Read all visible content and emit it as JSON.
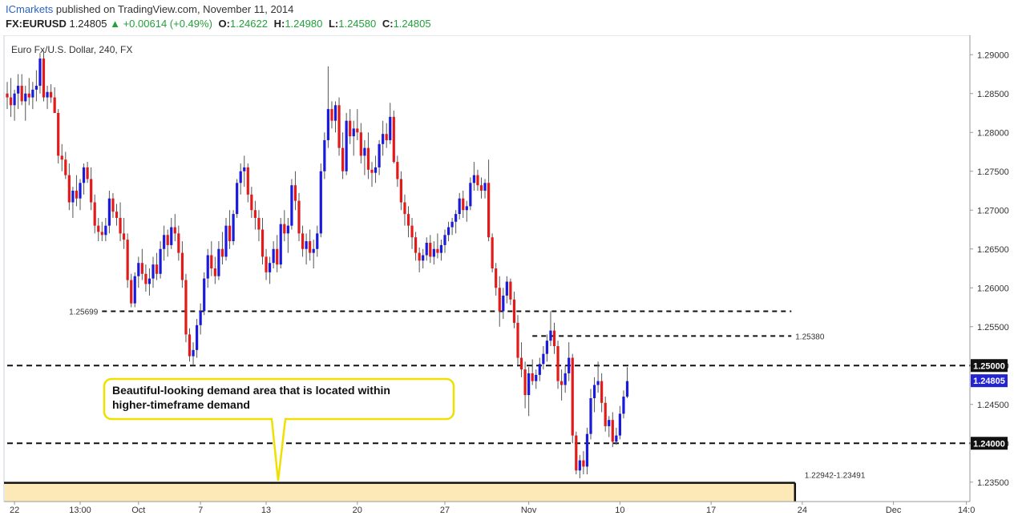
{
  "header": {
    "brand": "ICmarkets",
    "published": "published on TradingView.com, November 11, 2014",
    "symbol": "FX:EURUSD",
    "last": "1.24805",
    "change": "+0.00614 (+0.49%)",
    "o_label": "O:",
    "o_value": "1.24622",
    "h_label": "H:",
    "h_value": "1.24980",
    "l_label": "L:",
    "l_value": "1.24580",
    "c_label": "C:",
    "c_value": "1.24805"
  },
  "chart_data": {
    "type": "candlestick",
    "title": "Euro Fx/U.S. Dollar, 240, FX",
    "ylim": [
      1.2325,
      1.2925
    ],
    "y_ticks": [
      "1.29000",
      "1.28500",
      "1.28000",
      "1.27500",
      "1.27000",
      "1.26500",
      "1.26000",
      "1.25500",
      "1.25000",
      "1.24500",
      "1.24000",
      "1.23500"
    ],
    "x_ticks": [
      {
        "label": "22",
        "idx": 2
      },
      {
        "label": "13:00",
        "idx": 20
      },
      {
        "label": "Oct",
        "idx": 36
      },
      {
        "label": "7",
        "idx": 53
      },
      {
        "label": "13",
        "idx": 71
      },
      {
        "label": "20",
        "idx": 96
      },
      {
        "label": "27",
        "idx": 120
      },
      {
        "label": "Nov",
        "idx": 143
      },
      {
        "label": "10",
        "idx": 168
      },
      {
        "label": "17",
        "idx": 193
      },
      {
        "label": "24",
        "idx": 218
      },
      {
        "label": "Dec",
        "idx": 243
      },
      {
        "label": "14:0",
        "idx": 263
      }
    ],
    "key_levels": [
      {
        "price": 1.25699,
        "label": "1.25699",
        "from_idx": 26,
        "to_idx": 215,
        "thick": false
      },
      {
        "price": 1.2538,
        "label": "1.25380",
        "from_idx": 144,
        "to_idx": 215,
        "thick": false
      },
      {
        "price": 1.25,
        "label": "",
        "from_idx": 0,
        "to_idx": 268,
        "thick": true
      },
      {
        "price": 1.24,
        "label": "",
        "from_idx": 0,
        "to_idx": 268,
        "thick": true
      }
    ],
    "demand_zone": {
      "low": 1.22942,
      "high": 1.23491,
      "label": "1.22942-1.23491",
      "end_idx": 216
    },
    "price_tags": [
      {
        "price": 1.25,
        "label": "1.25000",
        "style": "dark"
      },
      {
        "price": 1.24805,
        "label": "1.24805",
        "style": "blue"
      },
      {
        "price": 1.24,
        "label": "1.24000",
        "style": "dark"
      }
    ],
    "annotation": {
      "text_line1": "Beautiful-looking demand area that is located within",
      "text_line2": "higher-timeframe demand"
    },
    "colors": {
      "up": "#1a1adc",
      "down": "#e21a1a",
      "wick": "#555555",
      "zone_fill": "#fde9b8",
      "callout": "#f0e000"
    },
    "ohlc": [
      [
        1.285,
        1.2865,
        1.283,
        1.2845
      ],
      [
        1.2845,
        1.287,
        1.282,
        1.2835
      ],
      [
        1.2835,
        1.2855,
        1.2815,
        1.285
      ],
      [
        1.285,
        1.2875,
        1.283,
        1.286
      ],
      [
        1.286,
        1.2875,
        1.2835,
        1.284
      ],
      [
        1.284,
        1.286,
        1.2815,
        1.285
      ],
      [
        1.285,
        1.287,
        1.2835,
        1.2845
      ],
      [
        1.2845,
        1.2865,
        1.283,
        1.2855
      ],
      [
        1.2855,
        1.288,
        1.284,
        1.286
      ],
      [
        1.286,
        1.2902,
        1.285,
        1.2895
      ],
      [
        1.2895,
        1.2905,
        1.284,
        1.2845
      ],
      [
        1.2845,
        1.286,
        1.283,
        1.2852
      ],
      [
        1.2852,
        1.2862,
        1.2838,
        1.2845
      ],
      [
        1.2845,
        1.2858,
        1.2825,
        1.2825
      ],
      [
        1.2825,
        1.283,
        1.276,
        1.277
      ],
      [
        1.277,
        1.2785,
        1.275,
        1.2765
      ],
      [
        1.2765,
        1.2775,
        1.274,
        1.2745
      ],
      [
        1.2745,
        1.276,
        1.27,
        1.271
      ],
      [
        1.271,
        1.273,
        1.269,
        1.2725
      ],
      [
        1.2725,
        1.2745,
        1.2705,
        1.2715
      ],
      [
        1.2715,
        1.274,
        1.27,
        1.2735
      ],
      [
        1.2735,
        1.276,
        1.272,
        1.2755
      ],
      [
        1.2755,
        1.2762,
        1.2735,
        1.274
      ],
      [
        1.274,
        1.2755,
        1.27,
        1.271
      ],
      [
        1.271,
        1.272,
        1.267,
        1.268
      ],
      [
        1.268,
        1.269,
        1.266,
        1.2672
      ],
      [
        1.2672,
        1.2685,
        1.266,
        1.2668
      ],
      [
        1.2668,
        1.269,
        1.266,
        1.268
      ],
      [
        1.268,
        1.2725,
        1.267,
        1.2715
      ],
      [
        1.2715,
        1.2722,
        1.269,
        1.2698
      ],
      [
        1.2698,
        1.2708,
        1.268,
        1.269
      ],
      [
        1.269,
        1.271,
        1.266,
        1.267
      ],
      [
        1.267,
        1.269,
        1.265,
        1.2662
      ],
      [
        1.2662,
        1.267,
        1.26,
        1.261
      ],
      [
        1.261,
        1.2618,
        1.2575,
        1.258
      ],
      [
        1.258,
        1.262,
        1.2575,
        1.2615
      ],
      [
        1.2615,
        1.264,
        1.26,
        1.2632
      ],
      [
        1.2632,
        1.265,
        1.261,
        1.2618
      ],
      [
        1.2618,
        1.263,
        1.2595,
        1.2605
      ],
      [
        1.2605,
        1.2625,
        1.259,
        1.2612
      ],
      [
        1.2612,
        1.264,
        1.26,
        1.263
      ],
      [
        1.263,
        1.2645,
        1.261,
        1.2618
      ],
      [
        1.2618,
        1.266,
        1.2612,
        1.265
      ],
      [
        1.265,
        1.268,
        1.2635,
        1.2668
      ],
      [
        1.2668,
        1.2675,
        1.264,
        1.2655
      ],
      [
        1.2655,
        1.269,
        1.265,
        1.2678
      ],
      [
        1.2678,
        1.2695,
        1.266,
        1.267
      ],
      [
        1.267,
        1.268,
        1.2635,
        1.2645
      ],
      [
        1.2645,
        1.266,
        1.26,
        1.261
      ],
      [
        1.261,
        1.2618,
        1.253,
        1.254
      ],
      [
        1.254,
        1.2548,
        1.2505,
        1.2512
      ],
      [
        1.2512,
        1.253,
        1.25,
        1.252
      ],
      [
        1.252,
        1.256,
        1.251,
        1.2552
      ],
      [
        1.2552,
        1.258,
        1.254,
        1.257
      ],
      [
        1.257,
        1.262,
        1.2565,
        1.2612
      ],
      [
        1.2612,
        1.265,
        1.26,
        1.2642
      ],
      [
        1.2642,
        1.266,
        1.2615,
        1.2625
      ],
      [
        1.2625,
        1.264,
        1.2605,
        1.2615
      ],
      [
        1.2615,
        1.266,
        1.261,
        1.265
      ],
      [
        1.265,
        1.2672,
        1.263,
        1.264
      ],
      [
        1.264,
        1.269,
        1.2635,
        1.268
      ],
      [
        1.268,
        1.27,
        1.265,
        1.266
      ],
      [
        1.266,
        1.27,
        1.2655,
        1.2695
      ],
      [
        1.2695,
        1.274,
        1.269,
        1.2735
      ],
      [
        1.2735,
        1.276,
        1.272,
        1.275
      ],
      [
        1.275,
        1.277,
        1.273,
        1.2755
      ],
      [
        1.2755,
        1.276,
        1.271,
        1.272
      ],
      [
        1.272,
        1.273,
        1.269,
        1.27
      ],
      [
        1.27,
        1.2712,
        1.2675,
        1.269
      ],
      [
        1.269,
        1.27,
        1.266,
        1.2675
      ],
      [
        1.2675,
        1.269,
        1.263,
        1.264
      ],
      [
        1.264,
        1.265,
        1.261,
        1.262
      ],
      [
        1.262,
        1.264,
        1.2605,
        1.2632
      ],
      [
        1.2632,
        1.266,
        1.2625,
        1.265
      ],
      [
        1.265,
        1.2668,
        1.262,
        1.263
      ],
      [
        1.263,
        1.269,
        1.2625,
        1.2682
      ],
      [
        1.2682,
        1.27,
        1.266,
        1.267
      ],
      [
        1.267,
        1.269,
        1.2645,
        1.268
      ],
      [
        1.268,
        1.274,
        1.2675,
        1.2732
      ],
      [
        1.2732,
        1.275,
        1.27,
        1.2712
      ],
      [
        1.2712,
        1.2722,
        1.266,
        1.267
      ],
      [
        1.267,
        1.268,
        1.264,
        1.265
      ],
      [
        1.265,
        1.267,
        1.263,
        1.266
      ],
      [
        1.266,
        1.2675,
        1.2635,
        1.2645
      ],
      [
        1.2645,
        1.2662,
        1.2625,
        1.265
      ],
      [
        1.265,
        1.268,
        1.264,
        1.267
      ],
      [
        1.267,
        1.276,
        1.2665,
        1.275
      ],
      [
        1.275,
        1.28,
        1.274,
        1.279
      ],
      [
        1.279,
        1.2885,
        1.278,
        1.283
      ],
      [
        1.283,
        1.284,
        1.2805,
        1.2815
      ],
      [
        1.2815,
        1.284,
        1.28,
        1.2835
      ],
      [
        1.2835,
        1.2845,
        1.277,
        1.278
      ],
      [
        1.278,
        1.28,
        1.274,
        1.275
      ],
      [
        1.275,
        1.2825,
        1.2745,
        1.2815
      ],
      [
        1.2815,
        1.283,
        1.2785,
        1.2795
      ],
      [
        1.2795,
        1.2815,
        1.277,
        1.2805
      ],
      [
        1.2805,
        1.283,
        1.279,
        1.28
      ],
      [
        1.28,
        1.2812,
        1.276,
        1.277
      ],
      [
        1.277,
        1.279,
        1.2745,
        1.278
      ],
      [
        1.278,
        1.28,
        1.274,
        1.2752
      ],
      [
        1.2752,
        1.2762,
        1.273,
        1.2748
      ],
      [
        1.2748,
        1.277,
        1.2735,
        1.2755
      ],
      [
        1.2755,
        1.279,
        1.2745,
        1.2785
      ],
      [
        1.2785,
        1.2815,
        1.277,
        1.2798
      ],
      [
        1.2798,
        1.2812,
        1.278,
        1.279
      ],
      [
        1.279,
        1.2838,
        1.2785,
        1.282
      ],
      [
        1.282,
        1.2828,
        1.276,
        1.2762
      ],
      [
        1.2762,
        1.277,
        1.273,
        1.274
      ],
      [
        1.274,
        1.275,
        1.27,
        1.271
      ],
      [
        1.271,
        1.272,
        1.268,
        1.2695
      ],
      [
        1.2695,
        1.2705,
        1.2665,
        1.268
      ],
      [
        1.268,
        1.269,
        1.265,
        1.2665
      ],
      [
        1.2665,
        1.2672,
        1.2635,
        1.2645
      ],
      [
        1.2645,
        1.2652,
        1.262,
        1.2635
      ],
      [
        1.2635,
        1.265,
        1.2625,
        1.2642
      ],
      [
        1.2642,
        1.2665,
        1.2635,
        1.2658
      ],
      [
        1.2658,
        1.2668,
        1.2632,
        1.264
      ],
      [
        1.264,
        1.266,
        1.263,
        1.265
      ],
      [
        1.265,
        1.267,
        1.2638,
        1.2645
      ],
      [
        1.2645,
        1.2662,
        1.2635,
        1.2655
      ],
      [
        1.2655,
        1.2675,
        1.2645,
        1.2668
      ],
      [
        1.2668,
        1.2685,
        1.266,
        1.2678
      ],
      [
        1.2678,
        1.269,
        1.2668,
        1.2685
      ],
      [
        1.2685,
        1.27,
        1.267,
        1.2695
      ],
      [
        1.2695,
        1.2722,
        1.2688,
        1.2715
      ],
      [
        1.2715,
        1.2725,
        1.269,
        1.27
      ],
      [
        1.27,
        1.2712,
        1.2685,
        1.2705
      ],
      [
        1.2705,
        1.2742,
        1.27,
        1.2735
      ],
      [
        1.2735,
        1.2762,
        1.2725,
        1.2745
      ],
      [
        1.2745,
        1.2752,
        1.2725,
        1.2732
      ],
      [
        1.2732,
        1.2742,
        1.2715,
        1.2725
      ],
      [
        1.2725,
        1.274,
        1.2715,
        1.2735
      ],
      [
        1.2735,
        1.2765,
        1.266,
        1.2665
      ],
      [
        1.2665,
        1.267,
        1.262,
        1.2625
      ],
      [
        1.2625,
        1.2632,
        1.259,
        1.26
      ],
      [
        1.26,
        1.2615,
        1.255,
        1.257
      ],
      [
        1.257,
        1.26,
        1.256,
        1.259
      ],
      [
        1.259,
        1.2615,
        1.258,
        1.2608
      ],
      [
        1.2608,
        1.2612,
        1.2578,
        1.2585
      ],
      [
        1.2585,
        1.2595,
        1.2548,
        1.2555
      ],
      [
        1.2555,
        1.2565,
        1.25,
        1.251
      ],
      [
        1.251,
        1.253,
        1.2485,
        1.2495
      ],
      [
        1.2495,
        1.2505,
        1.2445,
        1.2462
      ],
      [
        1.2462,
        1.2498,
        1.2435,
        1.249
      ],
      [
        1.249,
        1.2508,
        1.2475,
        1.248
      ],
      [
        1.248,
        1.2495,
        1.247,
        1.2488
      ],
      [
        1.2488,
        1.251,
        1.248,
        1.2502
      ],
      [
        1.2502,
        1.2525,
        1.2495,
        1.2515
      ],
      [
        1.2515,
        1.254,
        1.2505,
        1.2532
      ],
      [
        1.2532,
        1.257,
        1.2525,
        1.2545
      ],
      [
        1.2545,
        1.2555,
        1.2515,
        1.2525
      ],
      [
        1.2525,
        1.2532,
        1.247,
        1.248
      ],
      [
        1.248,
        1.2495,
        1.2455,
        1.2475
      ],
      [
        1.2475,
        1.25,
        1.2465,
        1.249
      ],
      [
        1.249,
        1.253,
        1.248,
        1.251
      ],
      [
        1.251,
        1.2515,
        1.24,
        1.241
      ],
      [
        1.241,
        1.2415,
        1.236,
        1.2365
      ],
      [
        1.2365,
        1.2385,
        1.2355,
        1.2378
      ],
      [
        1.2378,
        1.239,
        1.236,
        1.237
      ],
      [
        1.237,
        1.242,
        1.236,
        1.2412
      ],
      [
        1.2412,
        1.247,
        1.2405,
        1.2458
      ],
      [
        1.2458,
        1.2485,
        1.244,
        1.2475
      ],
      [
        1.2475,
        1.2505,
        1.2465,
        1.248
      ],
      [
        1.248,
        1.249,
        1.244,
        1.2452
      ],
      [
        1.2452,
        1.246,
        1.2415,
        1.2422
      ],
      [
        1.2422,
        1.2435,
        1.2408,
        1.243
      ],
      [
        1.243,
        1.244,
        1.2395,
        1.2402
      ],
      [
        1.2402,
        1.242,
        1.2398,
        1.241
      ],
      [
        1.241,
        1.2448,
        1.2405,
        1.2438
      ],
      [
        1.2438,
        1.2468,
        1.2432,
        1.246
      ],
      [
        1.246,
        1.2498,
        1.2458,
        1.248
      ]
    ]
  }
}
